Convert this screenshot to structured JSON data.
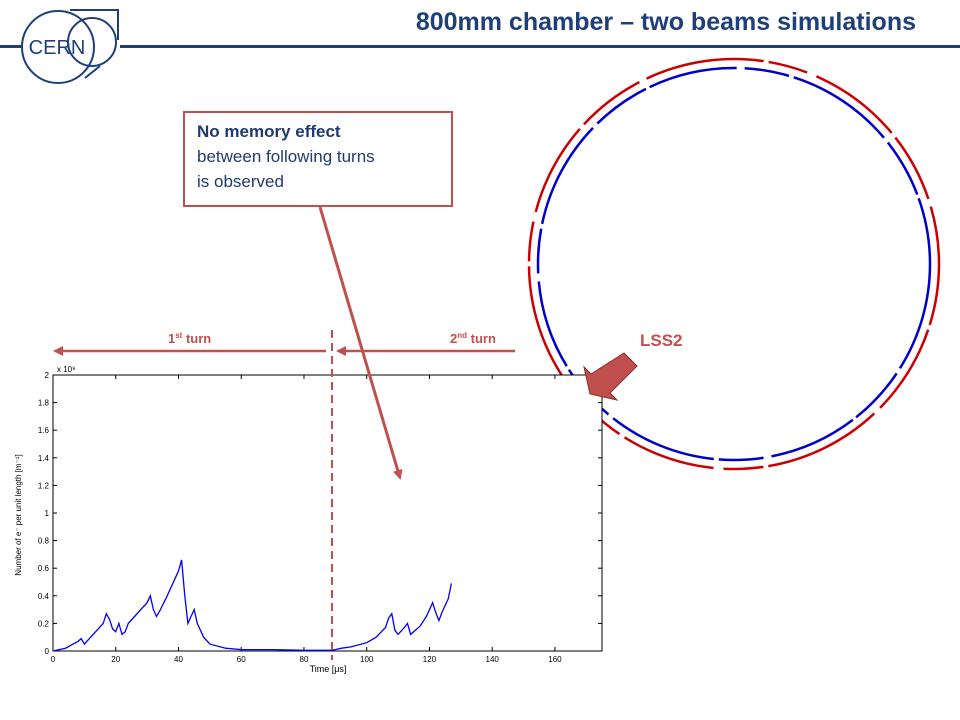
{
  "header": {
    "title": "800mm chamber – two beams simulations",
    "logo_text": "CERN"
  },
  "callout": {
    "bold": "No memory effect",
    "line2": "between following turns",
    "line3": "is observed"
  },
  "annotations": {
    "turn1": "1",
    "turn1_sup": "st",
    "turn1_word": " turn",
    "turn2": "2",
    "turn2_sup": "nd",
    "turn2_word": " turn",
    "lss": "LSS2"
  },
  "colors": {
    "accent": "#c0504d",
    "title": "#1f3f7a",
    "beam1": "#0000cc",
    "beam2": "#cc0000"
  },
  "chart_data": {
    "type": "line",
    "xlabel": "Time [μs]",
    "ylabel": "Number of e⁻ per unit length [m⁻¹]",
    "y_multiplier": "x 10⁹",
    "xlim": [
      0,
      175
    ],
    "ylim": [
      0,
      2
    ],
    "x_ticks": [
      "0",
      "20",
      "40",
      "60",
      "80",
      "100",
      "120",
      "140",
      "160"
    ],
    "y_ticks": [
      "0",
      "0.2",
      "0.4",
      "0.6",
      "0.8",
      "1",
      "1.2",
      "1.4",
      "1.6",
      "1.8",
      "2"
    ],
    "series": [
      {
        "x": [
          0,
          4,
          8,
          9,
          10,
          12,
          14,
          16,
          17,
          18,
          19,
          20,
          21,
          22,
          23,
          24,
          26,
          28,
          30,
          31,
          32,
          33,
          34,
          36,
          38,
          40,
          41,
          42,
          43,
          44,
          45,
          46,
          48,
          50,
          55,
          60,
          70,
          80,
          88,
          90,
          92,
          95,
          100,
          103,
          106,
          107,
          108,
          109,
          110,
          112,
          113,
          114,
          117,
          119,
          120,
          121,
          122,
          123,
          124,
          126,
          127
        ],
        "y": [
          0,
          0.02,
          0.07,
          0.09,
          0.05,
          0.1,
          0.15,
          0.2,
          0.27,
          0.23,
          0.16,
          0.14,
          0.2,
          0.12,
          0.14,
          0.2,
          0.25,
          0.3,
          0.35,
          0.4,
          0.3,
          0.25,
          0.29,
          0.38,
          0.48,
          0.58,
          0.66,
          0.4,
          0.2,
          0.25,
          0.3,
          0.2,
          0.1,
          0.05,
          0.02,
          0.01,
          0.01,
          0.005,
          0.005,
          0.01,
          0.02,
          0.03,
          0.06,
          0.1,
          0.17,
          0.24,
          0.27,
          0.15,
          0.12,
          0.17,
          0.2,
          0.12,
          0.18,
          0.25,
          0.3,
          0.35,
          0.28,
          0.22,
          0.28,
          0.38,
          0.49
        ]
      }
    ]
  }
}
